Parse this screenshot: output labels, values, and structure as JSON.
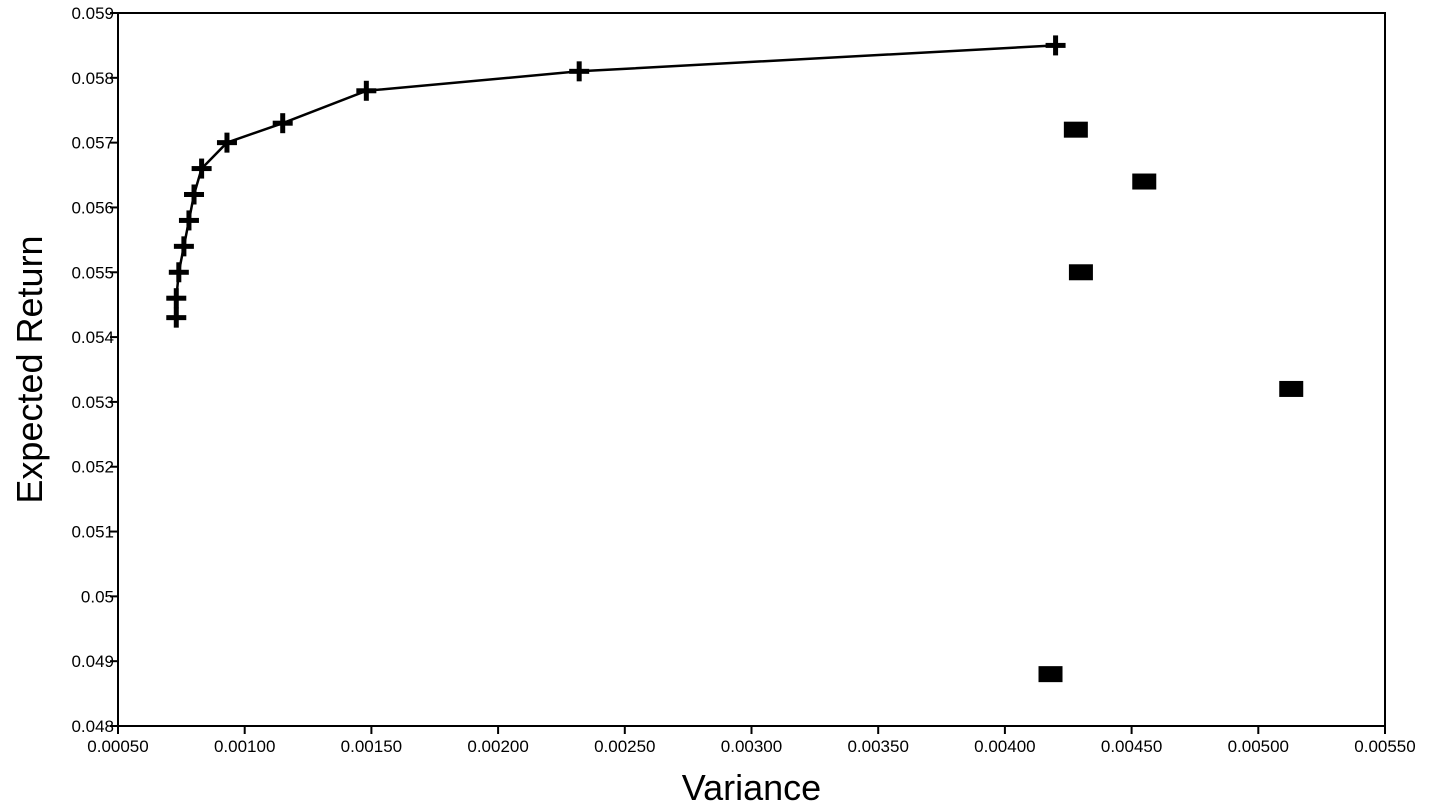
{
  "chart_data": {
    "type": "scatter",
    "xlabel": "Variance",
    "ylabel": "Expected Return",
    "xlim": [
      0.0005,
      0.0055
    ],
    "ylim": [
      0.048,
      0.059
    ],
    "x_ticks": [
      "0.00050",
      "0.00100",
      "0.00150",
      "0.00200",
      "0.00250",
      "0.00300",
      "0.00350",
      "0.00400",
      "0.00450",
      "0.00500",
      "0.00550"
    ],
    "y_ticks": [
      "0.048",
      "0.049",
      "0.05",
      "0.051",
      "0.052",
      "0.053",
      "0.054",
      "0.055",
      "0.056",
      "0.057",
      "0.058",
      "0.059"
    ],
    "grid": false,
    "legend": "none",
    "series": [
      {
        "marker": "plus",
        "line": true,
        "color": "#000000",
        "points": [
          {
            "x": 0.00073,
            "y": 0.0543
          },
          {
            "x": 0.00073,
            "y": 0.0546
          },
          {
            "x": 0.00074,
            "y": 0.055
          },
          {
            "x": 0.00076,
            "y": 0.0554
          },
          {
            "x": 0.00078,
            "y": 0.0558
          },
          {
            "x": 0.0008,
            "y": 0.0562
          },
          {
            "x": 0.00083,
            "y": 0.0566
          },
          {
            "x": 0.00093,
            "y": 0.057
          },
          {
            "x": 0.00115,
            "y": 0.0573
          },
          {
            "x": 0.00148,
            "y": 0.0578
          },
          {
            "x": 0.00232,
            "y": 0.0581
          },
          {
            "x": 0.0042,
            "y": 0.0585
          }
        ]
      },
      {
        "marker": "square",
        "line": false,
        "color": "#000000",
        "points": [
          {
            "x": 0.00428,
            "y": 0.0572
          },
          {
            "x": 0.00455,
            "y": 0.0564
          },
          {
            "x": 0.0043,
            "y": 0.055
          },
          {
            "x": 0.00513,
            "y": 0.0532
          },
          {
            "x": 0.00418,
            "y": 0.0488
          }
        ]
      }
    ]
  }
}
